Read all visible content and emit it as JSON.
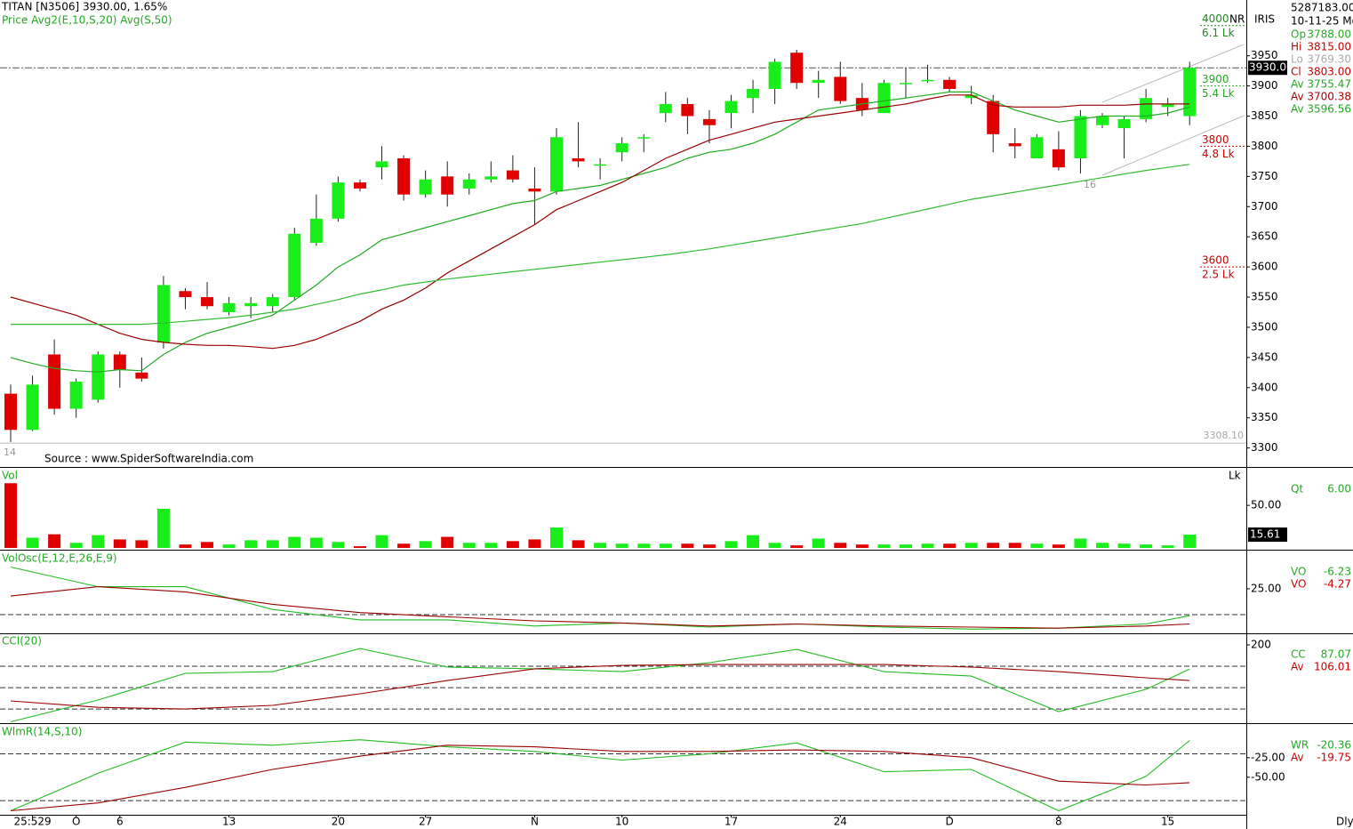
{
  "chart_data": [
    {
      "type": "candlestick",
      "title": "TITAN [N3506] 3930.00,  1.65%",
      "subtitle": "Price  Avg2(E,10,S,20)  Avg(S,50)",
      "source": "Source : www.SpiderSoftwareIndia.com",
      "open": [
        3390,
        3330,
        3455,
        3365,
        3380,
        3455,
        3425,
        3475,
        3560,
        3550,
        3525,
        3535,
        3535,
        3550,
        3640,
        3680,
        3740,
        3765,
        3780,
        3720,
        3750,
        3730,
        3745,
        3760,
        3730,
        3725,
        3780,
        3770,
        3790,
        3815,
        3855,
        3870,
        3845,
        3855,
        3880,
        3895,
        3955,
        3905,
        3915,
        3880,
        3855,
        3905,
        3910,
        3910,
        3880,
        3875,
        3805,
        3780,
        3795,
        3780,
        3835,
        3830,
        3845,
        3865,
        3850
      ],
      "high": [
        3405,
        3420,
        3480,
        3415,
        3460,
        3460,
        3450,
        3585,
        3565,
        3575,
        3550,
        3550,
        3555,
        3665,
        3720,
        3750,
        3745,
        3800,
        3785,
        3760,
        3775,
        3755,
        3775,
        3785,
        3765,
        3830,
        3840,
        3780,
        3815,
        3820,
        3890,
        3880,
        3860,
        3885,
        3910,
        3945,
        3960,
        3925,
        3940,
        3905,
        3910,
        3930,
        3935,
        3915,
        3900,
        3885,
        3830,
        3820,
        3825,
        3860,
        3855,
        3850,
        3895,
        3880,
        3940
      ],
      "low": [
        3310,
        3328,
        3355,
        3350,
        3375,
        3400,
        3410,
        3465,
        3530,
        3530,
        3520,
        3515,
        3525,
        3545,
        3635,
        3675,
        3725,
        3745,
        3710,
        3715,
        3700,
        3720,
        3740,
        3740,
        3670,
        3720,
        3765,
        3745,
        3775,
        3790,
        3840,
        3820,
        3805,
        3830,
        3855,
        3870,
        3895,
        3880,
        3870,
        3850,
        3855,
        3880,
        3905,
        3890,
        3870,
        3790,
        3780,
        3780,
        3760,
        3755,
        3830,
        3780,
        3840,
        3850,
        3835
      ],
      "close": [
        3330,
        3405,
        3365,
        3410,
        3455,
        3430,
        3415,
        3570,
        3550,
        3535,
        3540,
        3540,
        3550,
        3655,
        3680,
        3740,
        3730,
        3775,
        3720,
        3745,
        3720,
        3745,
        3750,
        3745,
        3725,
        3815,
        3775,
        3770,
        3805,
        3815,
        3870,
        3850,
        3835,
        3875,
        3895,
        3940,
        3905,
        3910,
        3875,
        3860,
        3905,
        3905,
        3910,
        3895,
        3885,
        3820,
        3800,
        3815,
        3765,
        3850,
        3850,
        3845,
        3880,
        3870,
        3930
      ],
      "up_color": "#1aee1a",
      "down_color": "#e00000",
      "lines": [
        {
          "color": "#22aa22",
          "values": [
            3450,
            3440,
            3432,
            3428,
            3426,
            3430,
            3428,
            3455,
            3475,
            3490,
            3500,
            3510,
            3520,
            3545,
            3570,
            3600,
            3620,
            3645,
            3655,
            3665,
            3675,
            3685,
            3695,
            3705,
            3710,
            3725,
            3730,
            3735,
            3745,
            3755,
            3765,
            3780,
            3790,
            3795,
            3805,
            3820,
            3840,
            3860,
            3865,
            3870,
            3875,
            3880,
            3885,
            3890,
            3890,
            3875,
            3860,
            3850,
            3840,
            3845,
            3850,
            3850,
            3850,
            3855,
            3865
          ]
        },
        {
          "color": "#9a0000",
          "values": [
            3550,
            3540,
            3530,
            3520,
            3505,
            3490,
            3480,
            3475,
            3472,
            3470,
            3470,
            3468,
            3465,
            3470,
            3480,
            3495,
            3510,
            3530,
            3545,
            3565,
            3590,
            3610,
            3630,
            3650,
            3670,
            3695,
            3710,
            3725,
            3740,
            3760,
            3780,
            3795,
            3810,
            3820,
            3830,
            3840,
            3845,
            3850,
            3855,
            3860,
            3865,
            3870,
            3878,
            3885,
            3885,
            3868,
            3865,
            3865,
            3865,
            3868,
            3868,
            3868,
            3870,
            3870,
            3870
          ]
        },
        {
          "color": "#33bb33",
          "values": [
            3505,
            3505,
            3505,
            3505,
            3505,
            3505,
            3505,
            3507,
            3510,
            3513,
            3516,
            3520,
            3525,
            3530,
            3538,
            3546,
            3555,
            3562,
            3570,
            3575,
            3580,
            3584,
            3588,
            3592,
            3596,
            3600,
            3604,
            3608,
            3612,
            3616,
            3620,
            3625,
            3630,
            3636,
            3642,
            3648,
            3654,
            3660,
            3666,
            3672,
            3680,
            3688,
            3696,
            3704,
            3712,
            3718,
            3724,
            3730,
            3736,
            3742,
            3748,
            3754,
            3760,
            3765,
            3770
          ]
        }
      ],
      "channel": {
        "x": [
          50,
          56.5
        ],
        "upper": [
          3873,
          3969
        ],
        "lower": [
          3752,
          3851
        ]
      },
      "ylim": [
        3270,
        4035
      ],
      "yticks": [
        3300,
        3350,
        3400,
        3450,
        3500,
        3550,
        3600,
        3650,
        3700,
        3750,
        3800,
        3850,
        3900,
        3950
      ],
      "last_price": {
        "value": 3930,
        "label": "3930.00"
      },
      "low_marker": {
        "value": 3308.1,
        "label": "3308.10"
      },
      "price_levels": [
        {
          "value": 4000,
          "label": "4000",
          "volume": "6.1 Lk",
          "color": "#228822"
        },
        {
          "value": 3900,
          "label": "3900",
          "volume": "5.4 Lk",
          "color": "#22aa22"
        },
        {
          "value": 3800,
          "label": "3800",
          "volume": "4.8 Lk",
          "color": "#cc0000"
        },
        {
          "value": 3600,
          "label": "3600",
          "volume": "2.5 Lk",
          "color": "#cc0000"
        }
      ],
      "annotations": [
        "14",
        "16"
      ],
      "xticks": [
        {
          "value": 1,
          "label": "25:529"
        },
        {
          "value": 3,
          "label": "O"
        },
        {
          "value": 5,
          "label": "6"
        },
        {
          "value": 10,
          "label": "13"
        },
        {
          "value": 15,
          "label": "20"
        },
        {
          "value": 19,
          "label": "27"
        },
        {
          "value": 24,
          "label": "N"
        },
        {
          "value": 28,
          "label": "10"
        },
        {
          "value": 33,
          "label": "17"
        },
        {
          "value": 38,
          "label": "24"
        },
        {
          "value": 43,
          "label": "D"
        },
        {
          "value": 48,
          "label": "8"
        },
        {
          "value": 53,
          "label": "15"
        }
      ]
    },
    {
      "type": "bar",
      "title": "Vol",
      "unit": "Lk",
      "values": [
        76,
        12,
        16,
        6,
        15,
        10,
        9,
        46,
        4,
        7,
        4,
        9,
        9,
        13,
        12,
        7,
        2,
        15,
        5,
        8,
        13,
        6,
        6,
        8,
        10,
        24,
        9,
        6,
        5,
        5,
        5,
        5,
        4,
        8,
        15,
        6,
        3,
        11,
        6,
        4,
        4,
        4,
        5,
        5,
        6,
        6,
        6,
        5,
        4,
        11,
        6,
        5,
        4,
        3,
        15.61
      ],
      "ylim": [
        0,
        93
      ],
      "yticks": [
        {
          "value": 50,
          "label": "50.00"
        }
      ],
      "readouts": [
        {
          "label": "Qt",
          "value": "6.00",
          "color": "#22aa22"
        }
      ]
    },
    {
      "type": "line",
      "title": "VolOsc(E,12,E,26,E,9)",
      "x": [
        0,
        4,
        8,
        12,
        16,
        20,
        24,
        28,
        32,
        36,
        40,
        44,
        48,
        52,
        54
      ],
      "series": [
        {
          "color": "#22bb22",
          "values": [
            46,
            27,
            27,
            5,
            -5,
            -5,
            -11,
            -8,
            -12,
            -9,
            -12,
            -14,
            -13,
            -9,
            -1
          ]
        },
        {
          "color": "#9a0000",
          "values": [
            18,
            27,
            22,
            10,
            2,
            -2,
            -6,
            -8,
            -11,
            -9,
            -11,
            -12,
            -13,
            -11,
            -9
          ]
        }
      ],
      "ylim": [
        -18,
        61
      ],
      "yticks": [
        {
          "value": 25,
          "label": "25.00"
        }
      ],
      "reference_lines": [
        0
      ],
      "readouts": [
        {
          "label": "VO",
          "value": "-6.23",
          "color": "#22aa22"
        },
        {
          "label": "VO",
          "value": "-4.27",
          "color": "#cc0000"
        }
      ]
    },
    {
      "type": "line",
      "title": "CCI(20)",
      "x": [
        0,
        4,
        8,
        12,
        16,
        20,
        24,
        28,
        32,
        36,
        40,
        44,
        48,
        52,
        54
      ],
      "series": [
        {
          "color": "#22bb22",
          "values": [
            -160,
            -58,
            67,
            75,
            183,
            96,
            88,
            75,
            117,
            179,
            75,
            54,
            -112,
            -8,
            87
          ]
        },
        {
          "color": "#9a0000",
          "values": [
            -62,
            -92,
            -100,
            -83,
            -29,
            33,
            88,
            104,
            108,
            108,
            108,
            96,
            75,
            46,
            33
          ]
        }
      ],
      "ylim": [
        -162,
        250
      ],
      "yticks": [
        200
      ],
      "reference_lines": [
        100,
        0,
        -100
      ],
      "readouts": [
        {
          "label": "CC",
          "value": "87.07",
          "color": "#22aa22"
        },
        {
          "label": "Av",
          "value": "106.01",
          "color": "#cc0000"
        }
      ]
    },
    {
      "type": "line",
      "title": "WlmR(14,S,10)",
      "x": [
        0,
        4,
        8,
        12,
        16,
        20,
        24,
        28,
        32,
        36,
        40,
        44,
        48,
        52,
        54
      ],
      "series": [
        {
          "color": "#22bb22",
          "values": [
            -93,
            -45,
            -5,
            -9,
            -2,
            -11,
            -17,
            -28,
            -20,
            -6,
            -43,
            -40,
            -93,
            -49,
            -3
          ]
        },
        {
          "color": "#9a0000",
          "values": [
            -93,
            -83,
            -63,
            -40,
            -23,
            -9,
            -11,
            -17,
            -17,
            -15,
            -17,
            -25,
            -55,
            -60,
            -57
          ]
        }
      ],
      "ylim": [
        -97,
        17
      ],
      "yticks": [
        {
          "value": -25,
          "label": "-25.00"
        },
        {
          "value": -50,
          "label": "-50.00"
        }
      ],
      "reference_lines": [
        -20,
        -80
      ],
      "readouts": [
        {
          "label": "WR",
          "value": "-20.36",
          "color": "#22aa22"
        },
        {
          "label": "Av",
          "value": "-19.75",
          "color": "#cc0000"
        }
      ]
    }
  ],
  "info": {
    "header": [
      "5287183.00",
      "10-11-25 Mo"
    ],
    "nr": "NR",
    "iris": "IRIS",
    "rows": [
      {
        "label": "Op",
        "value": "3788.00",
        "color": "#22aa22"
      },
      {
        "label": "Hi",
        "value": "3815.00",
        "color": "#cc0000"
      },
      {
        "label": "Lo",
        "value": "3769.30",
        "color": "#aaaaaa"
      },
      {
        "label": "Cl",
        "value": "3803.00",
        "color": "#cc0000"
      },
      {
        "label": "Av",
        "value": "3755.47",
        "color": "#22aa22"
      },
      {
        "label": "Av",
        "value": "3700.38",
        "color": "#aa0000"
      },
      {
        "label": "Av",
        "value": "3596.56",
        "color": "#22aa22"
      }
    ]
  },
  "period": "Dly"
}
